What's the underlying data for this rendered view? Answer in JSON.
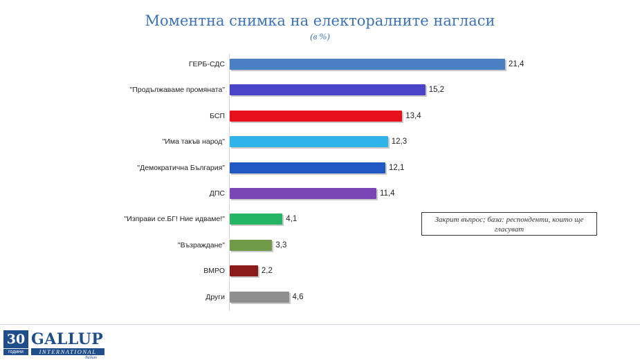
{
  "chart_data": {
    "type": "bar",
    "orientation": "horizontal",
    "title": "Моментна снимка на електоралните нагласи",
    "subtitle": "(в %)",
    "categories": [
      "ГЕРБ-СДС",
      "\"Продължаваме промяната\"",
      "БСП",
      "\"Има такъв народ\"",
      "\"Демократична България\"",
      "ДПС",
      "\"Изправи се.БГ! Ние идваме!\"",
      "\"Възраждане\"",
      "ВМРО",
      "Други"
    ],
    "values": [
      21.4,
      15.2,
      13.4,
      12.3,
      12.1,
      11.4,
      4.1,
      3.3,
      2.2,
      4.6
    ],
    "value_labels": [
      "21,4",
      "15,2",
      "13,4",
      "12,3",
      "12,1",
      "11,4",
      "4,1",
      "3,3",
      "2,2",
      "4,6"
    ],
    "colors": [
      "#4a7fc1",
      "#4b44c9",
      "#e8101c",
      "#2fb4ea",
      "#2058c4",
      "#7a45b5",
      "#23b564",
      "#6f9a48",
      "#8b1a1a",
      "#8f8f8f"
    ],
    "xlim": [
      0,
      21.4
    ],
    "grid": false,
    "legend": "none",
    "annotation": "Закрит въпрос; база: респонденти, които ще гласуват"
  },
  "logo": {
    "number": "30",
    "years": "години",
    "brand": "GALLUP",
    "tagline": "INTERNATIONAL",
    "region": "Balkan"
  }
}
